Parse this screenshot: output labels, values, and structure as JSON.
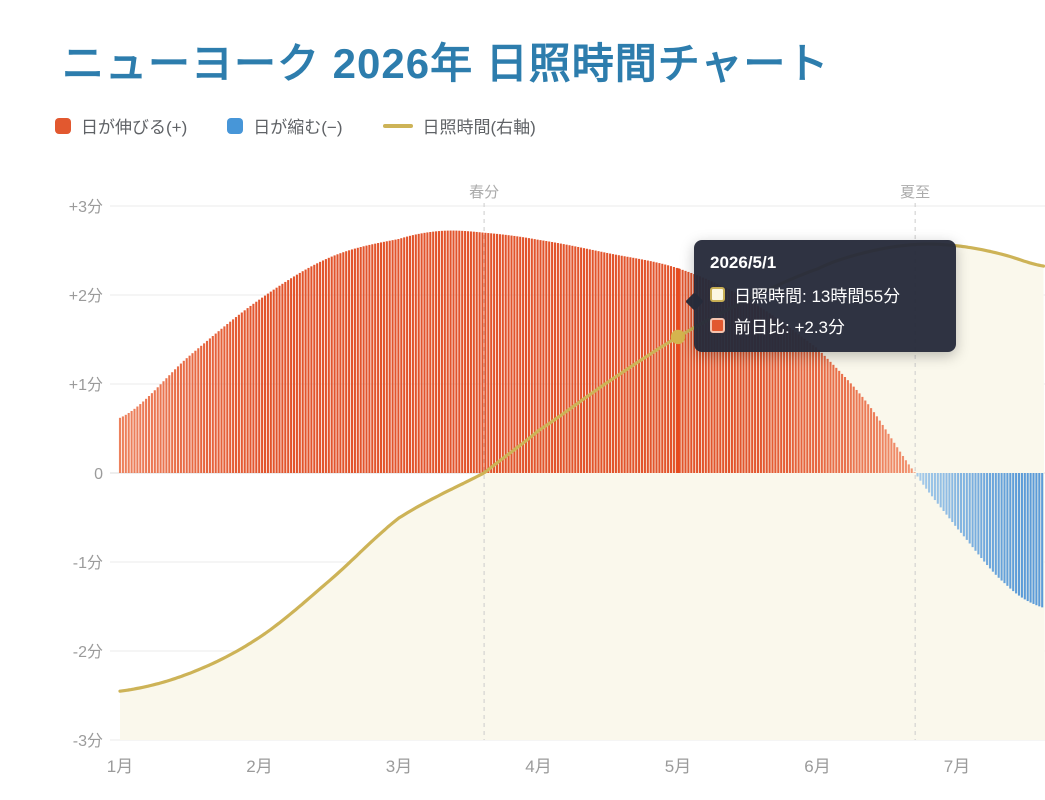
{
  "page": {
    "title": "ニューヨーク 2026年 日照時間チャート",
    "title_color": "#2d7dad",
    "background": "#ffffff"
  },
  "legend": {
    "items": [
      {
        "label": "日が伸びる(+)",
        "marker": "square",
        "color": "#e2582f"
      },
      {
        "label": "日が縮む(−)",
        "marker": "square",
        "color": "#4796d8"
      },
      {
        "label": "日照時間(右軸)",
        "marker": "line",
        "color": "#cdb357"
      }
    ]
  },
  "tooltip": {
    "date": "2026/5/1",
    "rows": [
      {
        "name": "日照時間",
        "value": "13時間55分",
        "text": "日照時間: 13時間55分",
        "marker_fill": "#fcf7e2",
        "marker_border": "#c8af55"
      },
      {
        "name": "前日比",
        "value": "+2.3分",
        "text": "前日比: +2.3分",
        "marker_fill": "#e2582f",
        "marker_border": "#f4c3ae"
      }
    ]
  },
  "chart_data": {
    "type": "bar",
    "subtype": "daily bars + smooth line, right part of year clipped at 7月",
    "x_axis": {
      "labels": [
        "1月",
        "2月",
        "3月",
        "4月",
        "5月",
        "6月",
        "7月"
      ],
      "visible_month_range": [
        1.0,
        7.63
      ],
      "label_color": "#9b9b9b"
    },
    "left_axis": {
      "ticks": [
        "+3分",
        "+2分",
        "+1分",
        "0",
        "-1分",
        "-2分",
        "-3分"
      ],
      "min": -3,
      "max": 3,
      "unit": "分",
      "label_color": "#9b9b9b",
      "grid": true
    },
    "right_axis": {
      "name": "日照時間",
      "unit": "minutes of daylight",
      "labels_visible": false,
      "min_minutes": 521,
      "max_minutes": 937
    },
    "annotations": [
      {
        "label": "春分",
        "month_frac": 2.61
      },
      {
        "label": "夏至",
        "month_frac": 5.7
      }
    ],
    "annotation_style": {
      "line_color": "#cccccc",
      "dash": "4 4",
      "label_color": "#ababab"
    },
    "series": [
      {
        "name": "前日比",
        "type": "bar",
        "unit": "分/日",
        "color_low": "#f29674",
        "color_high": "#e2542c",
        "color_low_neg": "#a9cdea",
        "color_high_neg": "#5b9bd8",
        "keypoints": [
          [
            0.0,
            0.62
          ],
          [
            0.5,
            1.32
          ],
          [
            1.0,
            1.95
          ],
          [
            1.5,
            2.42
          ],
          [
            2.0,
            2.63
          ],
          [
            2.3,
            2.72
          ],
          [
            2.61,
            2.7
          ],
          [
            3.0,
            2.62
          ],
          [
            3.5,
            2.47
          ],
          [
            4.0,
            2.3
          ],
          [
            4.5,
            1.95
          ],
          [
            5.0,
            1.4
          ],
          [
            5.35,
            0.8
          ],
          [
            5.7,
            0.0
          ],
          [
            6.0,
            -0.62
          ],
          [
            6.35,
            -1.25
          ],
          [
            6.631,
            -1.52
          ]
        ]
      },
      {
        "name": "日照時間",
        "type": "line",
        "unit": "minutes",
        "color": "#cdb357",
        "area_color": "#faf8ec",
        "keypoints_minutes": [
          [
            0.0,
            559
          ],
          [
            0.5,
            573
          ],
          [
            1.0,
            601
          ],
          [
            1.5,
            645
          ],
          [
            2.0,
            694
          ],
          [
            2.61,
            729
          ],
          [
            3.0,
            762
          ],
          [
            3.5,
            800
          ],
          [
            4.0,
            835
          ],
          [
            4.5,
            864
          ],
          [
            5.0,
            888
          ],
          [
            5.35,
            901
          ],
          [
            5.7,
            907
          ],
          [
            6.0,
            906
          ],
          [
            6.3,
            900
          ],
          [
            6.631,
            890
          ]
        ]
      }
    ],
    "highlight": {
      "date": "2026/5/1",
      "month_frac": 4.0,
      "bar_value": 2.3,
      "daylight_minutes": 835,
      "bar_color": "#e74a1e",
      "dot_color": "#d5b44e"
    },
    "grid_color": "#ebebeb",
    "zero_line_color": "#dcdcdc",
    "legend_position": "top-left",
    "title": "ニューヨーク 2026年 日照時間チャート"
  }
}
